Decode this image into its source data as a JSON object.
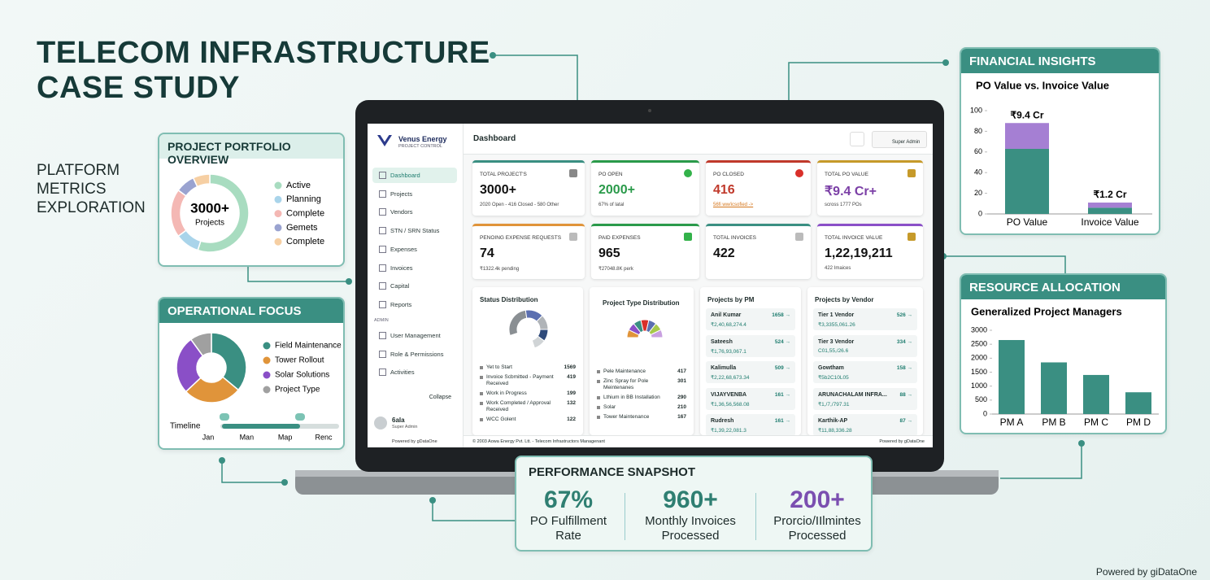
{
  "header": {
    "title": [
      "TELECOM INFRASTRUCTURE",
      "CASE STUDY"
    ],
    "subtitle": [
      "PLATFORM",
      "METRICS",
      "EXPLORATION"
    ]
  },
  "chart_data": [
    {
      "type": "donut",
      "title": "PROJECT PORTFOLIO OVERVIEW",
      "center_value": "3000+",
      "center_label": "Projects",
      "categories": [
        "Active",
        "Planning",
        "Complete",
        "Gemets",
        "Complete"
      ],
      "values": [
        55,
        10,
        20,
        8,
        7
      ],
      "colors": [
        "#a8dcc0",
        "#a9d4ea",
        "#f4b8b4",
        "#9aa3d0",
        "#f6cfa3"
      ]
    },
    {
      "type": "donut",
      "title": "OPERATIONAL FOCUS",
      "categories": [
        "Field Maintenance",
        "Tower Rollout",
        "Solar Solutions",
        "Project Type"
      ],
      "values": [
        36,
        27,
        27,
        10
      ],
      "colors": [
        "#3a8f82",
        "#e0943a",
        "#8a4fc7",
        "#a0a0a0"
      ],
      "timeline": {
        "label": "Timeline",
        "categories": [
          "Jan",
          "Man",
          "Map",
          "Renc"
        ]
      }
    },
    {
      "type": "stacked_bar",
      "panel_title": "FINANCIAL INSIGHTS",
      "title": "PO Value vs. Invoice Value",
      "categories": [
        "PO Value",
        "Invoice Value"
      ],
      "series": [
        {
          "color": "#3a8f82",
          "values": [
            63,
            6
          ]
        },
        {
          "color": "#a57fd3",
          "values": [
            25,
            5
          ]
        }
      ],
      "annotations": [
        "₹9.4 Cr",
        "₹1.2 Cr"
      ],
      "ylim": [
        0,
        100
      ],
      "yticks": [
        0,
        20,
        40,
        60,
        80,
        100
      ]
    },
    {
      "type": "bar",
      "panel_title": "RESOURCE ALLOCATION",
      "title": "Generalized Project Managers",
      "categories": [
        "PM A",
        "PM B",
        "PM C",
        "PM D"
      ],
      "values": [
        2650,
        1850,
        1400,
        780
      ],
      "color": "#3a8f82",
      "ylim": [
        0,
        3000
      ],
      "yticks": [
        0,
        500,
        1000,
        1500,
        2000,
        2500,
        3000
      ]
    }
  ],
  "dashboard": {
    "brand": {
      "name": "Venus Energy",
      "tagline": "PROJECT CONTROL"
    },
    "nav": [
      "Dashboard",
      "Projects",
      "Vendors",
      "STN / SRN Status",
      "Expenses",
      "Invoices",
      "Capital",
      "Reports"
    ],
    "admin_label": "ADMIN",
    "admin_nav": [
      "User Management",
      "Role & Permissions",
      "Activities"
    ],
    "collapse": "Collapse",
    "user": {
      "name": "6ala",
      "role": "Super Admin"
    },
    "sidebar_credit": "Powered by gDataOne",
    "page_title": "Dashboard",
    "top_user": "Super Admin",
    "cards": [
      {
        "label": "TOTAL PROJECT'S",
        "value": "3000+",
        "note": "2020 Open - 416 Closed - 580 Other"
      },
      {
        "label": "PO OPEN",
        "value": "2000+",
        "note": "67% of latal"
      },
      {
        "label": "PO CLOSED",
        "value": "416",
        "note": "56fi ww/icsofied ->"
      },
      {
        "label": "TOTAL PO VALUE",
        "value": "₹9.4 Cr+",
        "note": "scross 1777 POs"
      },
      {
        "label": "PENOING EXPENSE REQUESTS",
        "value": "74",
        "note": "₹1322.4k pending"
      },
      {
        "label": "PAID EXPENSES",
        "value": "965",
        "note": "₹27048.8K perk"
      },
      {
        "label": "TOTAL INVOICES",
        "value": "422"
      },
      {
        "label": "TOTAL INVOICE VALUE",
        "value": "1,22,19,211",
        "note": "422 Imaices"
      }
    ],
    "status": {
      "title": "Status Distribution",
      "rows": [
        {
          "label": "Yet to Start",
          "value": 1569
        },
        {
          "label": "Invoice Scbmitted - Payment Received",
          "value": 419
        },
        {
          "label": "Work in Progress",
          "value": 199
        },
        {
          "label": "Work Completed / Approval Received",
          "value": 132
        },
        {
          "label": "WCC Golent",
          "value": 122
        }
      ]
    },
    "types": {
      "title": "Project Type Distribution",
      "rows": [
        {
          "label": "Pele Maintenance",
          "value": 417
        },
        {
          "label": "Zinc Spray for Pole Meintenanes",
          "value": 301
        },
        {
          "label": "Lthium in BB Installation",
          "value": 290
        },
        {
          "label": "Solar",
          "value": 210
        },
        {
          "label": "Tower Maintenance",
          "value": 167
        }
      ]
    },
    "pm": {
      "title": "Projects by PM",
      "rows": [
        {
          "name": "Anil Kumar",
          "count": "1658 →",
          "amount": "₹2,40,68,274.4"
        },
        {
          "name": "Sateesh",
          "count": "524 →",
          "amount": "₹1,76,93,067.1"
        },
        {
          "name": "Kalimulla",
          "count": "509 →",
          "amount": "₹2,22,68,673.34"
        },
        {
          "name": "VIJAYVENBA",
          "count": "161 →",
          "amount": "₹1,36,56,568.08"
        },
        {
          "name": "Rudresh",
          "count": "161 →",
          "amount": "₹1,39,22,081.3"
        }
      ]
    },
    "vendor": {
      "title": "Projects by Vendor",
      "rows": [
        {
          "name": "Tier 1 Vendor",
          "count": "526 →",
          "amount": "₹3,3355,061.26"
        },
        {
          "name": "Tier 3 Vendor",
          "count": "334 →",
          "amount": "C01,55,/26.6"
        },
        {
          "name": "Gowtham",
          "count": "158 →",
          "amount": "₹5b2C10L05"
        },
        {
          "name": "ARUNACHALAM INFRA...",
          "count": "88 →",
          "amount": "₹1,/7,/797.31"
        },
        {
          "name": "Karthik-AP",
          "count": "87 →",
          "amount": "₹11,88,336.28"
        }
      ]
    },
    "footer": {
      "copyright": "© 2003 Aowa Energy Pvt. Ltt. - Telecom Infrastructors Managenant",
      "credit": "Powered by gDataOne"
    }
  },
  "performance": {
    "title": "PERFORMANCE SNAPSHOT",
    "items": [
      {
        "value": "67%",
        "label": [
          "PO Fulfillment",
          "Rate"
        ]
      },
      {
        "value": "960+",
        "label": [
          "Monthly Invoices",
          "Processed"
        ]
      },
      {
        "value": "200+",
        "label": [
          "Prorcio/IIlmintes",
          "Processed"
        ]
      }
    ]
  },
  "credit": "Powered by giDataOne"
}
